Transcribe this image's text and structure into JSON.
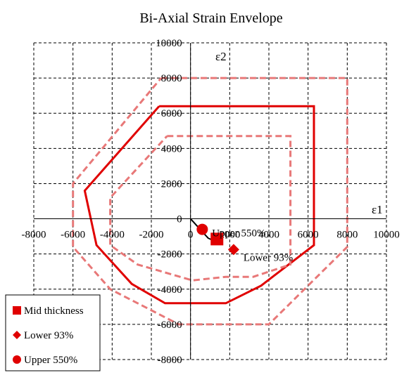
{
  "chart_data": {
    "type": "scatter",
    "title": "Bi-Axial Strain Envelope",
    "xlabel": "ε1",
    "ylabel": "ε2",
    "xlim": [
      -8000,
      10000
    ],
    "ylim": [
      -8000,
      10000
    ],
    "xticks": [
      -8000,
      -6000,
      -4000,
      -2000,
      0,
      2000,
      4000,
      6000,
      8000,
      10000
    ],
    "yticks": [
      -8000,
      -6000,
      -4000,
      -2000,
      0,
      2000,
      4000,
      6000,
      8000,
      10000
    ],
    "grid": true,
    "envelopes": [
      {
        "style": "dashed",
        "color": "#e87878",
        "points": [
          [
            -1500,
            8000
          ],
          [
            8000,
            8000
          ],
          [
            8000,
            -1600
          ],
          [
            4000,
            -6000
          ],
          [
            -600,
            -6000
          ],
          [
            -4100,
            -4000
          ],
          [
            -6000,
            -1600
          ],
          [
            -6000,
            2000
          ],
          [
            -1500,
            8000
          ]
        ]
      },
      {
        "style": "solid",
        "color": "#e00000",
        "points": [
          [
            -1600,
            6400
          ],
          [
            6300,
            6400
          ],
          [
            6300,
            -1500
          ],
          [
            3600,
            -3800
          ],
          [
            1800,
            -4800
          ],
          [
            -1300,
            -4800
          ],
          [
            -3000,
            -3700
          ],
          [
            -4800,
            -1500
          ],
          [
            -5400,
            1600
          ],
          [
            -1600,
            6400
          ]
        ]
      },
      {
        "style": "dashed",
        "color": "#e87878",
        "points": [
          [
            -1200,
            4700
          ],
          [
            5100,
            4700
          ],
          [
            5100,
            -2600
          ],
          [
            3200,
            -3300
          ],
          [
            1800,
            -3300
          ],
          [
            100,
            -3500
          ],
          [
            -2700,
            -2600
          ],
          [
            -4100,
            -1500
          ],
          [
            -4100,
            1200
          ],
          [
            -1200,
            4700
          ]
        ]
      }
    ],
    "load_path": {
      "color": "#000000",
      "points": [
        [
          0,
          0
        ],
        [
          900,
          -1100
        ],
        [
          1500,
          -1400
        ]
      ]
    },
    "series": [
      {
        "name": "Mid thickness",
        "marker": "square",
        "color": "#e00000",
        "x": [
          1350
        ],
        "y": [
          -1150
        ]
      },
      {
        "name": "Lower 93%",
        "marker": "diamond",
        "color": "#e00000",
        "x": [
          2200
        ],
        "y": [
          -1750
        ]
      },
      {
        "name": "Upper 550%",
        "marker": "circle",
        "color": "#e00000",
        "x": [
          600
        ],
        "y": [
          -600
        ]
      }
    ],
    "annotations": [
      {
        "text": "Upper 550%",
        "x": 1100,
        "y": -800
      },
      {
        "text": "Lower 93%",
        "x": 2700,
        "y": -2200
      }
    ],
    "legend": {
      "placement": "bottom-left",
      "entries": [
        "Mid thickness",
        "Lower 93%",
        "Upper 550%"
      ]
    }
  }
}
